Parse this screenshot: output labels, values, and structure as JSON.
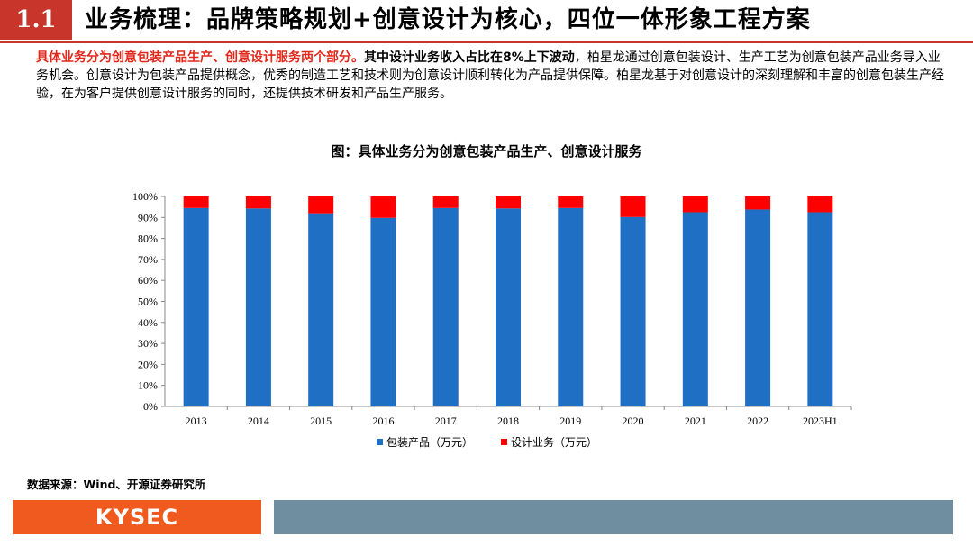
{
  "header": {
    "section_number": "1.1",
    "section_title": "业务梳理：品牌策略规划+创意设计为核心，四位一体形象工程方案"
  },
  "intro": {
    "highlight": "具体业务分为创意包装产品生产、创意设计服务两个部分。",
    "bold": "其中设计业务收入占比在8%上下波动",
    "rest": "，柏星龙通过创意包装设计、生产工艺为创意包装产品业务导入业务机会。创意设计为包装产品提供概念，优秀的制造工艺和技术则为创意设计顺利转化为产品提供保障。柏星龙基于对创意设计的深刻理解和丰富的创意包装生产经验，在为客户提供创意设计服务的同时，还提供技术研发和产品生产服务。"
  },
  "chart_title": "图：具体业务分为创意包装产品生产、创意设计服务",
  "chart_data": {
    "type": "bar",
    "stacked": true,
    "categories": [
      "2013",
      "2014",
      "2015",
      "2016",
      "2017",
      "2018",
      "2019",
      "2020",
      "2021",
      "2022",
      "2023H1"
    ],
    "series": [
      {
        "name": "包装产品（万元）",
        "color": "#1f6fc5",
        "values": [
          94.5,
          94.3,
          92.0,
          89.8,
          94.5,
          94.3,
          94.5,
          90.2,
          92.5,
          93.8,
          92.5
        ]
      },
      {
        "name": "设计业务（万元）",
        "color": "#ff0000",
        "values": [
          5.5,
          5.7,
          8.0,
          10.2,
          5.5,
          5.7,
          5.5,
          9.8,
          7.5,
          6.2,
          7.5
        ]
      }
    ],
    "y_ticks": [
      "0%",
      "10%",
      "20%",
      "30%",
      "40%",
      "50%",
      "60%",
      "70%",
      "80%",
      "90%",
      "100%"
    ],
    "ylim": [
      0,
      100
    ],
    "grid": false,
    "legend_position": "bottom"
  },
  "source": "数据来源：Wind、开源证券研究所",
  "footer": {
    "logo_text": "KYSEC",
    "logo_color": "#f05a1e",
    "bar_color": "#6f8fa1"
  }
}
